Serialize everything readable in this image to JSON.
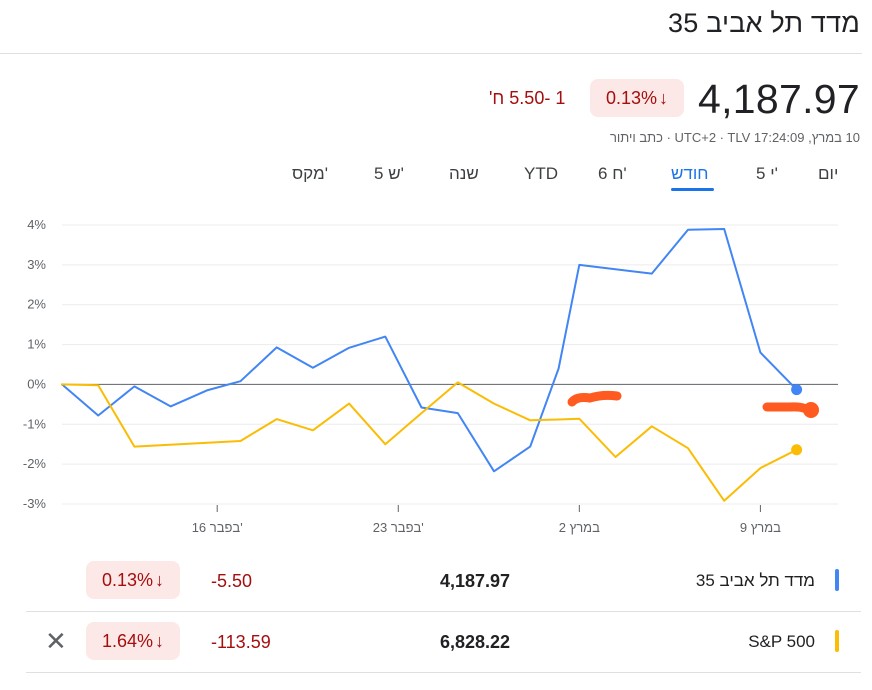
{
  "title": "מדד תל אביב 35",
  "quote": {
    "price": "4,187.97",
    "percent": "0.13%",
    "arrow": "↓",
    "change": "1 -5.50 ח'",
    "meta": "10 במרץ, 17:24:09 UTC+2 · TLV · כתב ויתור"
  },
  "tabs": [
    {
      "label": "יום"
    },
    {
      "label": "5 י'"
    },
    {
      "label": "חודש"
    },
    {
      "label": "6 ח'"
    },
    {
      "label": "YTD"
    },
    {
      "label": "שנה"
    },
    {
      "label": "5 ש'"
    },
    {
      "label": "מקס'"
    }
  ],
  "colors": {
    "blue": "#4285f4",
    "yellow": "#fbbc04",
    "red": "#a50e0e",
    "pill_bg": "#fce8e6",
    "annotation": "#ff5a1f"
  },
  "chart_data": {
    "type": "line",
    "ylim": [
      -3,
      4
    ],
    "yticks": [
      "4%",
      "3%",
      "2%",
      "1%",
      "0%",
      "-1%",
      "-2%",
      "-3%"
    ],
    "ytick_values": [
      4,
      3,
      2,
      1,
      0,
      -1,
      -2,
      -3
    ],
    "x_tick_labels": [
      "16 בפבר'",
      "23 בפבר'",
      "2 במרץ",
      "9 במרץ"
    ],
    "x_tick_days": [
      6,
      13,
      20,
      27
    ],
    "baseline": 0,
    "series": [
      {
        "name": "מדד תל אביב 35",
        "color": "#4285f4",
        "x": [
          0,
          1.4,
          2.8,
          4.2,
          5.6,
          6.9,
          8.3,
          9.7,
          11.1,
          12.5,
          13.9,
          15.3,
          16.7,
          18.1,
          19.2,
          20.0,
          22.8,
          24.2,
          25.6,
          27.0,
          28.4
        ],
        "y": [
          0,
          -0.78,
          -0.05,
          -0.55,
          -0.15,
          0.08,
          0.93,
          0.42,
          0.92,
          1.2,
          -0.58,
          -0.72,
          -2.18,
          -1.56,
          0.4,
          3.0,
          2.78,
          3.88,
          3.9,
          0.8,
          -0.13
        ]
      },
      {
        "name": "S&P 500",
        "color": "#fbbc04",
        "x": [
          0,
          1.4,
          2.8,
          6.9,
          8.3,
          9.7,
          11.1,
          12.5,
          13.9,
          15.3,
          16.7,
          18.1,
          19.2,
          20.0,
          21.4,
          22.8,
          24.2,
          25.6,
          27.0,
          28.4
        ],
        "y": [
          0,
          -0.02,
          -1.56,
          -1.42,
          -0.87,
          -1.15,
          -0.48,
          -1.5,
          -0.72,
          0.05,
          -0.48,
          -0.9,
          -0.88,
          -0.86,
          -1.82,
          -1.05,
          -1.6,
          -2.92,
          -2.1,
          -1.64
        ]
      }
    ]
  },
  "legend": [
    {
      "name": "מדד תל אביב 35",
      "price": "4,187.97",
      "change": "-5.50",
      "percent": "0.13%",
      "arrow": "↓"
    },
    {
      "name": "S&P 500",
      "price": "6,828.22",
      "change": "-113.59",
      "percent": "1.64%",
      "arrow": "↓",
      "close": "✕"
    }
  ]
}
